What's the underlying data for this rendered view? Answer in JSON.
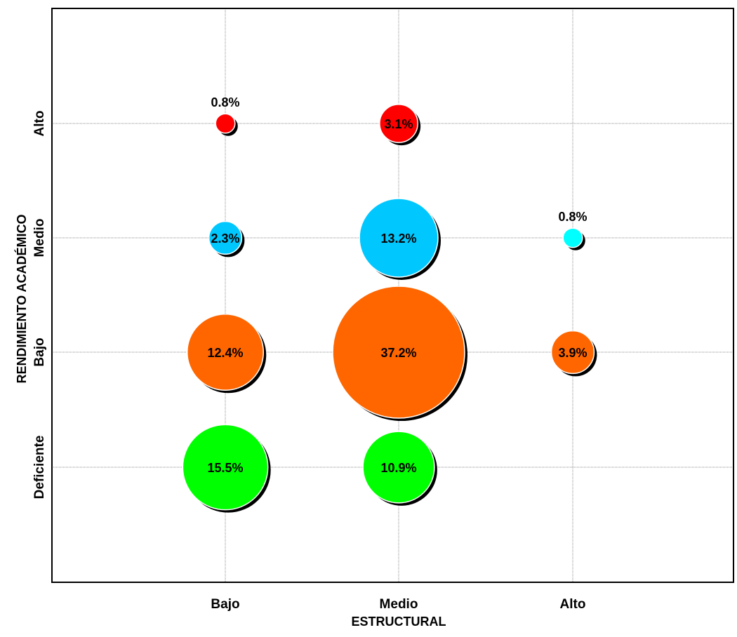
{
  "chart_data": {
    "type": "bubble",
    "title": "",
    "xlabel": "ESTRUCTURAL",
    "ylabel": "RENDIMIENTO ACADÉMICO",
    "x_categories": [
      "Bajo",
      "Medio",
      "Alto"
    ],
    "y_categories": [
      "Deficiente",
      "Bajo",
      "Medio",
      "Alto"
    ],
    "grid": true,
    "points": [
      {
        "x": "Bajo",
        "y": "Deficiente",
        "value": 15.5,
        "label": "15.5%",
        "color": "#00ff00"
      },
      {
        "x": "Medio",
        "y": "Deficiente",
        "value": 10.9,
        "label": "10.9%",
        "color": "#00ff00"
      },
      {
        "x": "Bajo",
        "y": "Bajo",
        "value": 12.4,
        "label": "12.4%",
        "color": "#ff6600"
      },
      {
        "x": "Medio",
        "y": "Bajo",
        "value": 37.2,
        "label": "37.2%",
        "color": "#ff6600"
      },
      {
        "x": "Alto",
        "y": "Bajo",
        "value": 3.9,
        "label": "3.9%",
        "color": "#ff6600"
      },
      {
        "x": "Bajo",
        "y": "Medio",
        "value": 2.3,
        "label": "2.3%",
        "color": "#00c8ff"
      },
      {
        "x": "Medio",
        "y": "Medio",
        "value": 13.2,
        "label": "13.2%",
        "color": "#00c8ff"
      },
      {
        "x": "Alto",
        "y": "Medio",
        "value": 0.8,
        "label": "0.8%",
        "color": "#00ffff"
      },
      {
        "x": "Bajo",
        "y": "Alto",
        "value": 0.8,
        "label": "0.8%",
        "color": "#ff0000"
      },
      {
        "x": "Medio",
        "y": "Alto",
        "value": 3.1,
        "label": "3.1%",
        "color": "#ff0000"
      }
    ]
  }
}
